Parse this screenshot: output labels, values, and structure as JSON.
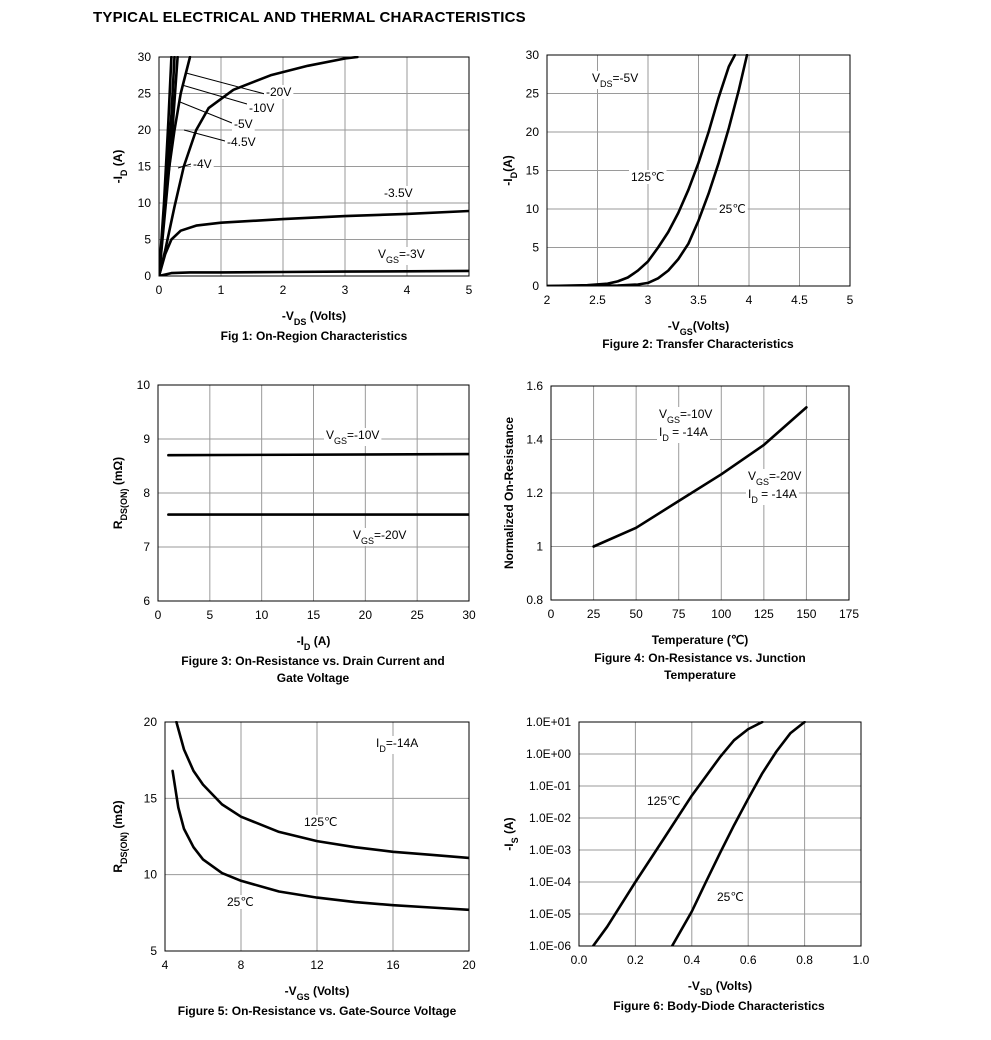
{
  "page_title": "TYPICAL ELECTRICAL AND THERMAL CHARACTERISTICS",
  "chart_data": [
    {
      "id": "fig1",
      "type": "line",
      "caption": "Fig 1: On-Region Characteristics",
      "xlabel": "-VDS (Volts)",
      "ylabel": "-ID (A)",
      "xlim": [
        0,
        5
      ],
      "ylim": [
        0,
        30
      ],
      "xticks": [
        0,
        1,
        2,
        3,
        4,
        5
      ],
      "yticks": [
        0,
        5,
        10,
        15,
        20,
        25,
        30
      ],
      "grid": true,
      "series": [
        {
          "name": "-20V",
          "x": [
            0,
            0.1,
            0.25,
            0.4,
            0.6,
            0.8,
            1.2,
            1.8,
            2.4,
            3.0,
            3.2
          ],
          "y": [
            0,
            3.5,
            9.5,
            15,
            20,
            23,
            25.5,
            27.5,
            28.8,
            29.8,
            30
          ]
        },
        {
          "name": "-10V",
          "x": [
            0,
            0.1,
            0.2,
            0.3
          ],
          "y": [
            0,
            9,
            18,
            30
          ]
        },
        {
          "name": "-5V",
          "x": [
            0,
            0.1,
            0.2,
            0.25
          ],
          "y": [
            0,
            11,
            22,
            30
          ]
        },
        {
          "name": "-4.5V",
          "x": [
            0,
            0.08,
            0.15,
            0.2
          ],
          "y": [
            0,
            10,
            21,
            30
          ]
        },
        {
          "name": "-4V",
          "x": [
            0,
            0.08,
            0.15,
            0.25,
            0.35,
            0.5
          ],
          "y": [
            0,
            8,
            14,
            20,
            25,
            30
          ]
        },
        {
          "name": "-3.5V",
          "x": [
            0,
            0.1,
            0.2,
            0.35,
            0.6,
            1,
            2,
            3,
            4,
            5
          ],
          "y": [
            0,
            3,
            5,
            6.2,
            6.9,
            7.3,
            7.8,
            8.2,
            8.5,
            8.9
          ]
        },
        {
          "name": "VGS=-3V",
          "x": [
            0,
            0.2,
            0.5,
            1,
            2,
            3,
            4,
            5
          ],
          "y": [
            0,
            0.4,
            0.5,
            0.5,
            0.55,
            0.6,
            0.65,
            0.7
          ]
        }
      ],
      "annotations": [
        "-20V",
        "-10V",
        "-5V",
        "-4.5V",
        "-4V",
        "-3.5V",
        "VGS=-3V"
      ]
    },
    {
      "id": "fig2",
      "type": "line",
      "caption": "Figure 2: Transfer Characteristics",
      "xlabel": "-VGS(Volts)",
      "ylabel": "-ID(A)",
      "xlim": [
        2,
        5
      ],
      "ylim": [
        0,
        30
      ],
      "xticks": [
        2,
        2.5,
        3,
        3.5,
        4,
        4.5,
        5
      ],
      "yticks": [
        0,
        5,
        10,
        15,
        20,
        25,
        30
      ],
      "grid": true,
      "series": [
        {
          "name": "125℃",
          "x": [
            2.0,
            2.4,
            2.6,
            2.7,
            2.8,
            2.9,
            3.0,
            3.1,
            3.2,
            3.3,
            3.4,
            3.5,
            3.6,
            3.7,
            3.8,
            3.86
          ],
          "y": [
            0,
            0.1,
            0.3,
            0.6,
            1.1,
            2,
            3.2,
            5,
            7,
            9.5,
            12.5,
            16,
            20,
            24.5,
            28.5,
            30
          ]
        },
        {
          "name": "25℃",
          "x": [
            2.0,
            2.7,
            2.9,
            3.0,
            3.1,
            3.2,
            3.3,
            3.4,
            3.5,
            3.6,
            3.7,
            3.8,
            3.9,
            3.98
          ],
          "y": [
            0,
            0.05,
            0.2,
            0.4,
            1,
            2,
            3.5,
            5.5,
            8.5,
            12,
            16,
            20.5,
            25.5,
            30
          ]
        }
      ],
      "annotations": [
        "VDS=-5V",
        "125℃",
        "25℃"
      ]
    },
    {
      "id": "fig3",
      "type": "line",
      "caption": "Figure 3: On-Resistance vs. Drain Current and Gate Voltage",
      "xlabel": "-ID (A)",
      "ylabel": "RDS(ON) (mΩ)",
      "xlim": [
        0,
        30
      ],
      "ylim": [
        6,
        10
      ],
      "xticks": [
        0,
        5,
        10,
        15,
        20,
        25,
        30
      ],
      "yticks": [
        6,
        7,
        8,
        9,
        10
      ],
      "grid": true,
      "series": [
        {
          "name": "VGS=-10V",
          "x": [
            1,
            30
          ],
          "y": [
            8.7,
            8.72
          ]
        },
        {
          "name": "VGS=-20V",
          "x": [
            1,
            30
          ],
          "y": [
            7.6,
            7.6
          ]
        }
      ],
      "annotations": [
        "VGS=-10V",
        "VGS=-20V"
      ]
    },
    {
      "id": "fig4",
      "type": "line",
      "caption": "Figure 4: On-Resistance vs. Junction Temperature",
      "xlabel": "Temperature (℃)",
      "ylabel": "Normalized On-Resistance",
      "xlim": [
        0,
        175
      ],
      "ylim": [
        0.8,
        1.6
      ],
      "xticks": [
        0,
        25,
        50,
        75,
        100,
        125,
        150,
        175
      ],
      "yticks": [
        0.8,
        1,
        1.2,
        1.4,
        1.6
      ],
      "grid": true,
      "series": [
        {
          "name": "VGS=-10V, ID=-14A / VGS=-20V, ID=-14A",
          "x": [
            25,
            50,
            75,
            100,
            125,
            150
          ],
          "y": [
            1.0,
            1.07,
            1.17,
            1.27,
            1.38,
            1.52
          ]
        }
      ],
      "annotations": [
        "VGS=-10V",
        "ID = -14A",
        "VGS=-20V",
        "ID = -14A"
      ]
    },
    {
      "id": "fig5",
      "type": "line",
      "caption": "Figure 5: On-Resistance vs. Gate-Source Voltage",
      "xlabel": "-VGS (Volts)",
      "ylabel": "RDS(ON) (mΩ)",
      "xlim": [
        4,
        20
      ],
      "ylim": [
        5,
        20
      ],
      "xticks": [
        4,
        8,
        12,
        16,
        20
      ],
      "yticks": [
        5,
        10,
        15,
        20
      ],
      "grid": true,
      "series": [
        {
          "name": "125℃",
          "x": [
            4.6,
            5,
            5.5,
            6,
            7,
            8,
            10,
            12,
            14,
            16,
            18,
            20
          ],
          "y": [
            20,
            18.2,
            16.8,
            15.9,
            14.6,
            13.8,
            12.8,
            12.2,
            11.8,
            11.5,
            11.3,
            11.1
          ]
        },
        {
          "name": "25℃",
          "x": [
            4.4,
            4.7,
            5,
            5.5,
            6,
            7,
            8,
            10,
            12,
            14,
            16,
            18,
            20
          ],
          "y": [
            16.8,
            14.4,
            13,
            11.8,
            11,
            10.1,
            9.6,
            8.9,
            8.5,
            8.2,
            8.0,
            7.85,
            7.7
          ]
        }
      ],
      "annotations": [
        "ID=-14A",
        "125℃",
        "25℃"
      ]
    },
    {
      "id": "fig6",
      "type": "line",
      "caption": "Figure 6: Body-Diode Characteristics",
      "xlabel": "-VSD (Volts)",
      "ylabel": "-IS (A)",
      "xlim": [
        0,
        1.0
      ],
      "ylim": [
        1e-06,
        10
      ],
      "yscale": "log",
      "xticks": [
        0.0,
        0.2,
        0.4,
        0.6,
        0.8,
        1.0
      ],
      "xticklabels": [
        "0.0",
        "0.2",
        "0.4",
        "0.6",
        "0.8",
        "1.0"
      ],
      "yticks": [
        1e-06,
        1e-05,
        0.0001,
        0.001,
        0.01,
        0.1,
        1,
        10
      ],
      "yticklabels": [
        "1.0E-06",
        "1.0E-05",
        "1.0E-04",
        "1.0E-03",
        "1.0E-02",
        "1.0E-01",
        "1.0E+00",
        "1.0E+01"
      ],
      "grid": true,
      "series": [
        {
          "name": "125℃",
          "x": [
            0.05,
            0.1,
            0.2,
            0.3,
            0.4,
            0.5,
            0.55,
            0.6,
            0.65
          ],
          "y": [
            1e-06,
            4e-06,
            0.0001,
            0.0022,
            0.05,
            0.8,
            2.7,
            6,
            10
          ]
        },
        {
          "name": "25℃",
          "x": [
            0.33,
            0.4,
            0.45,
            0.5,
            0.55,
            0.6,
            0.65,
            0.7,
            0.75,
            0.8
          ],
          "y": [
            1e-06,
            1.2e-05,
            0.0001,
            0.0008,
            0.006,
            0.04,
            0.25,
            1.2,
            4.5,
            10
          ]
        }
      ],
      "annotations": [
        "125℃",
        "25℃"
      ]
    }
  ]
}
